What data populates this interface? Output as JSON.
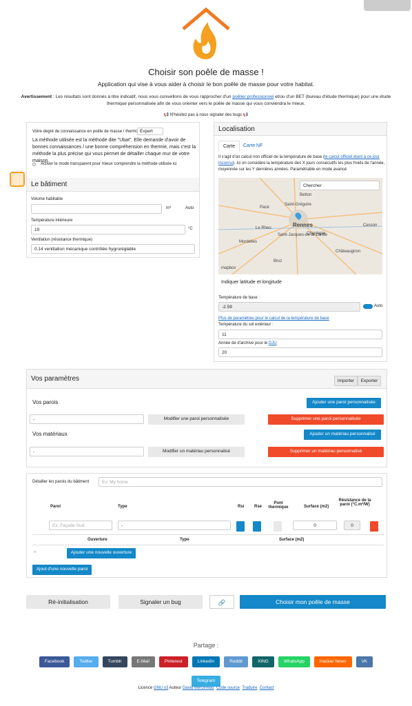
{
  "header": {
    "title": "Choisir son poêle de masse !",
    "subtitle": "Application qui vise à vous aider à choisir le bon poêle de masse pour votre habitat.",
    "warning_label": "Avertissement",
    "warning_1": " : Les résultats sont donnés à titre indicatif, nous vous conseillons de vous rapprocher d'un ",
    "warning_link": "poêlier professionnel",
    "warning_2": " et/ou d'un BET (bureau d'étude thermique) pour une étude thermique personnalisée afin de vous orienter vers le poêle de masse qui vous conviendra le mieux.",
    "bugs": "N'hésitez pas à nous signaler des bugs"
  },
  "level": {
    "label": "Votre degré de connaissance en poêle de masse / thermie",
    "value": "Expert",
    "description": "La méthode utilisée est la méthode dite \"Ubat\". Elle demande d'avoir de bonnes connaissances / une bonne compréhension en thermie, mais c'est la méthode la plus précise qui vous permet de détailler chaque mur de votre maison.",
    "transparent": "Activer le mode transparent pour mieux comprendre la méthode utilisée ici"
  },
  "building": {
    "title": "Le bâtiment",
    "volume_label": "Volume habitable",
    "volume_unit": "m³",
    "auto": "Auto",
    "temp_label": "Température intérieure",
    "temp_value": "19",
    "temp_unit": "°C",
    "ventilation_label": "Ventilation (résistance thermique)",
    "ventilation_value": "0.14 ventilation mécanique contrôlée hygroréglable"
  },
  "localisation": {
    "title": "Localisation",
    "tabs": [
      "Carte",
      "Carte NF"
    ],
    "info_1": "Il s'agit d'un calcul non officiel de la température de base (",
    "info_link": "le calcul officiel étant à ce jour inconnu",
    "info_2": "). Ici on considère la température des X jours consécutifs les plus froids de l'année, moyennée sur les Y dernières années. Paramétrable en mode avancé",
    "search": "Chercher",
    "map_labels": [
      "Betton",
      "Pacé",
      "Saint-Grégoire",
      "Rennes",
      "Le Rheu",
      "Saint-Jacques-de-la-Lande",
      "Chantepie",
      "Mordelles",
      "Bruz",
      "Châteaugiron",
      "Cesson",
      "mapbox"
    ],
    "latlng": "Indiquer latitude et longitude",
    "base_label": "Température de base :",
    "base_value": "-2.59",
    "auto": "Auto",
    "more_params": "Plus de paramètres pour le calcul de la température de base",
    "ground_label": "Température du sol extérieur :",
    "ground_value": "11",
    "archive_label": "Année de d'archive pour le ",
    "archive_link": "DJU",
    "archive_value": "20"
  },
  "params": {
    "title": "Vos paramètres",
    "import": "Importer",
    "export": "Exporter",
    "walls_title": "Vos parois",
    "add_wall": "Ajouter une paroi personnalisée",
    "wall_select": "-",
    "edit_wall": "Modifier une paroi personnalisée",
    "delete_wall": "Supprimer une paroi personnalisée",
    "materials_title": "Vos matériaux",
    "add_material": "Ajouter un matériau personnalisé",
    "material_select": "-",
    "edit_material": "Modifier un matériau personnalisé",
    "delete_material": "Supprimer un matériau personnalisé"
  },
  "walls": {
    "label": "Détailler les parois du bâtiment",
    "placeholder": "Ex: My home",
    "headers": [
      "Paroi",
      "Type",
      "Rsi",
      "Rse",
      "Pont thermique",
      "Surface (m2)",
      "Résistance de la paroi (°C.m²/W)"
    ],
    "row": {
      "name_placeholder": "Ex: Façade Sud",
      "type": "-",
      "surface": "0",
      "resistance": "0"
    },
    "opening_headers": [
      "Ouverture",
      "Type",
      "Surface (m2)"
    ],
    "opening_dash": "–",
    "add_opening": "Ajouter une nouvelle ouverture",
    "add_wall": "Ajout d'une nouvelle paroi"
  },
  "actions": {
    "reset": "Ré-initialisation",
    "bug": "Signaler un bug",
    "submit": "Choisir mon poêle de masse"
  },
  "share": {
    "title": "Partage :",
    "buttons": [
      "Facebook",
      "Twitter",
      "Tumblr",
      "E-Mail",
      "Pinterest",
      "LinkedIn",
      "Reddit",
      "XING",
      "WhatsApp",
      "Hacker News",
      "VK",
      "Telegram"
    ]
  },
  "footer": {
    "licence": "Licence ",
    "licence_link": "GNU v3",
    "author": " Auteur ",
    "author_link": "David Mercereau",
    "source": "Code source",
    "translate": "Traduire",
    "contact": "Contact"
  }
}
